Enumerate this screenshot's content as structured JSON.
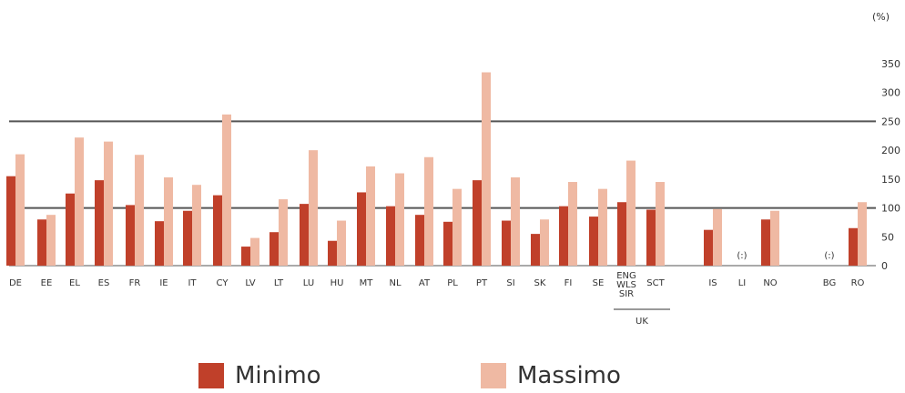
{
  "chart_data": {
    "type": "bar",
    "unit_label": "(%)",
    "yticks": [
      "0",
      "50",
      "100",
      "150",
      "200",
      "250",
      "300",
      "350"
    ],
    "ylim": [
      0,
      350
    ],
    "reference_lines": [
      100,
      250
    ],
    "grid": false,
    "legend_position": "bottom",
    "colors": {
      "Minimo": "#c0402a",
      "Massimo": "#efb9a3"
    },
    "categories": [
      "DE",
      "EE",
      "EL",
      "ES",
      "FR",
      "IE",
      "IT",
      "CY",
      "LV",
      "LT",
      "LU",
      "HU",
      "MT",
      "NL",
      "AT",
      "PL",
      "PT",
      "SI",
      "SK",
      "FI",
      "SE",
      "ENG WLS SIR",
      "SCT",
      "IS",
      "LI",
      "NO",
      "BG",
      "RO"
    ],
    "group_label": "UK",
    "not_available": [
      {
        "category": "LI",
        "label": "(:)"
      },
      {
        "category": "BG",
        "label": "(:)"
      }
    ],
    "series": [
      {
        "name": "Minimo",
        "values": [
          155,
          80,
          125,
          148,
          105,
          77,
          95,
          122,
          33,
          58,
          107,
          43,
          127,
          103,
          88,
          76,
          148,
          78,
          55,
          103,
          85,
          110,
          97,
          62,
          null,
          80,
          null,
          65
        ]
      },
      {
        "name": "Massimo",
        "values": [
          193,
          88,
          222,
          215,
          192,
          153,
          140,
          262,
          48,
          115,
          200,
          78,
          172,
          160,
          188,
          133,
          335,
          153,
          80,
          145,
          133,
          182,
          145,
          98,
          null,
          95,
          null,
          110
        ]
      }
    ]
  }
}
